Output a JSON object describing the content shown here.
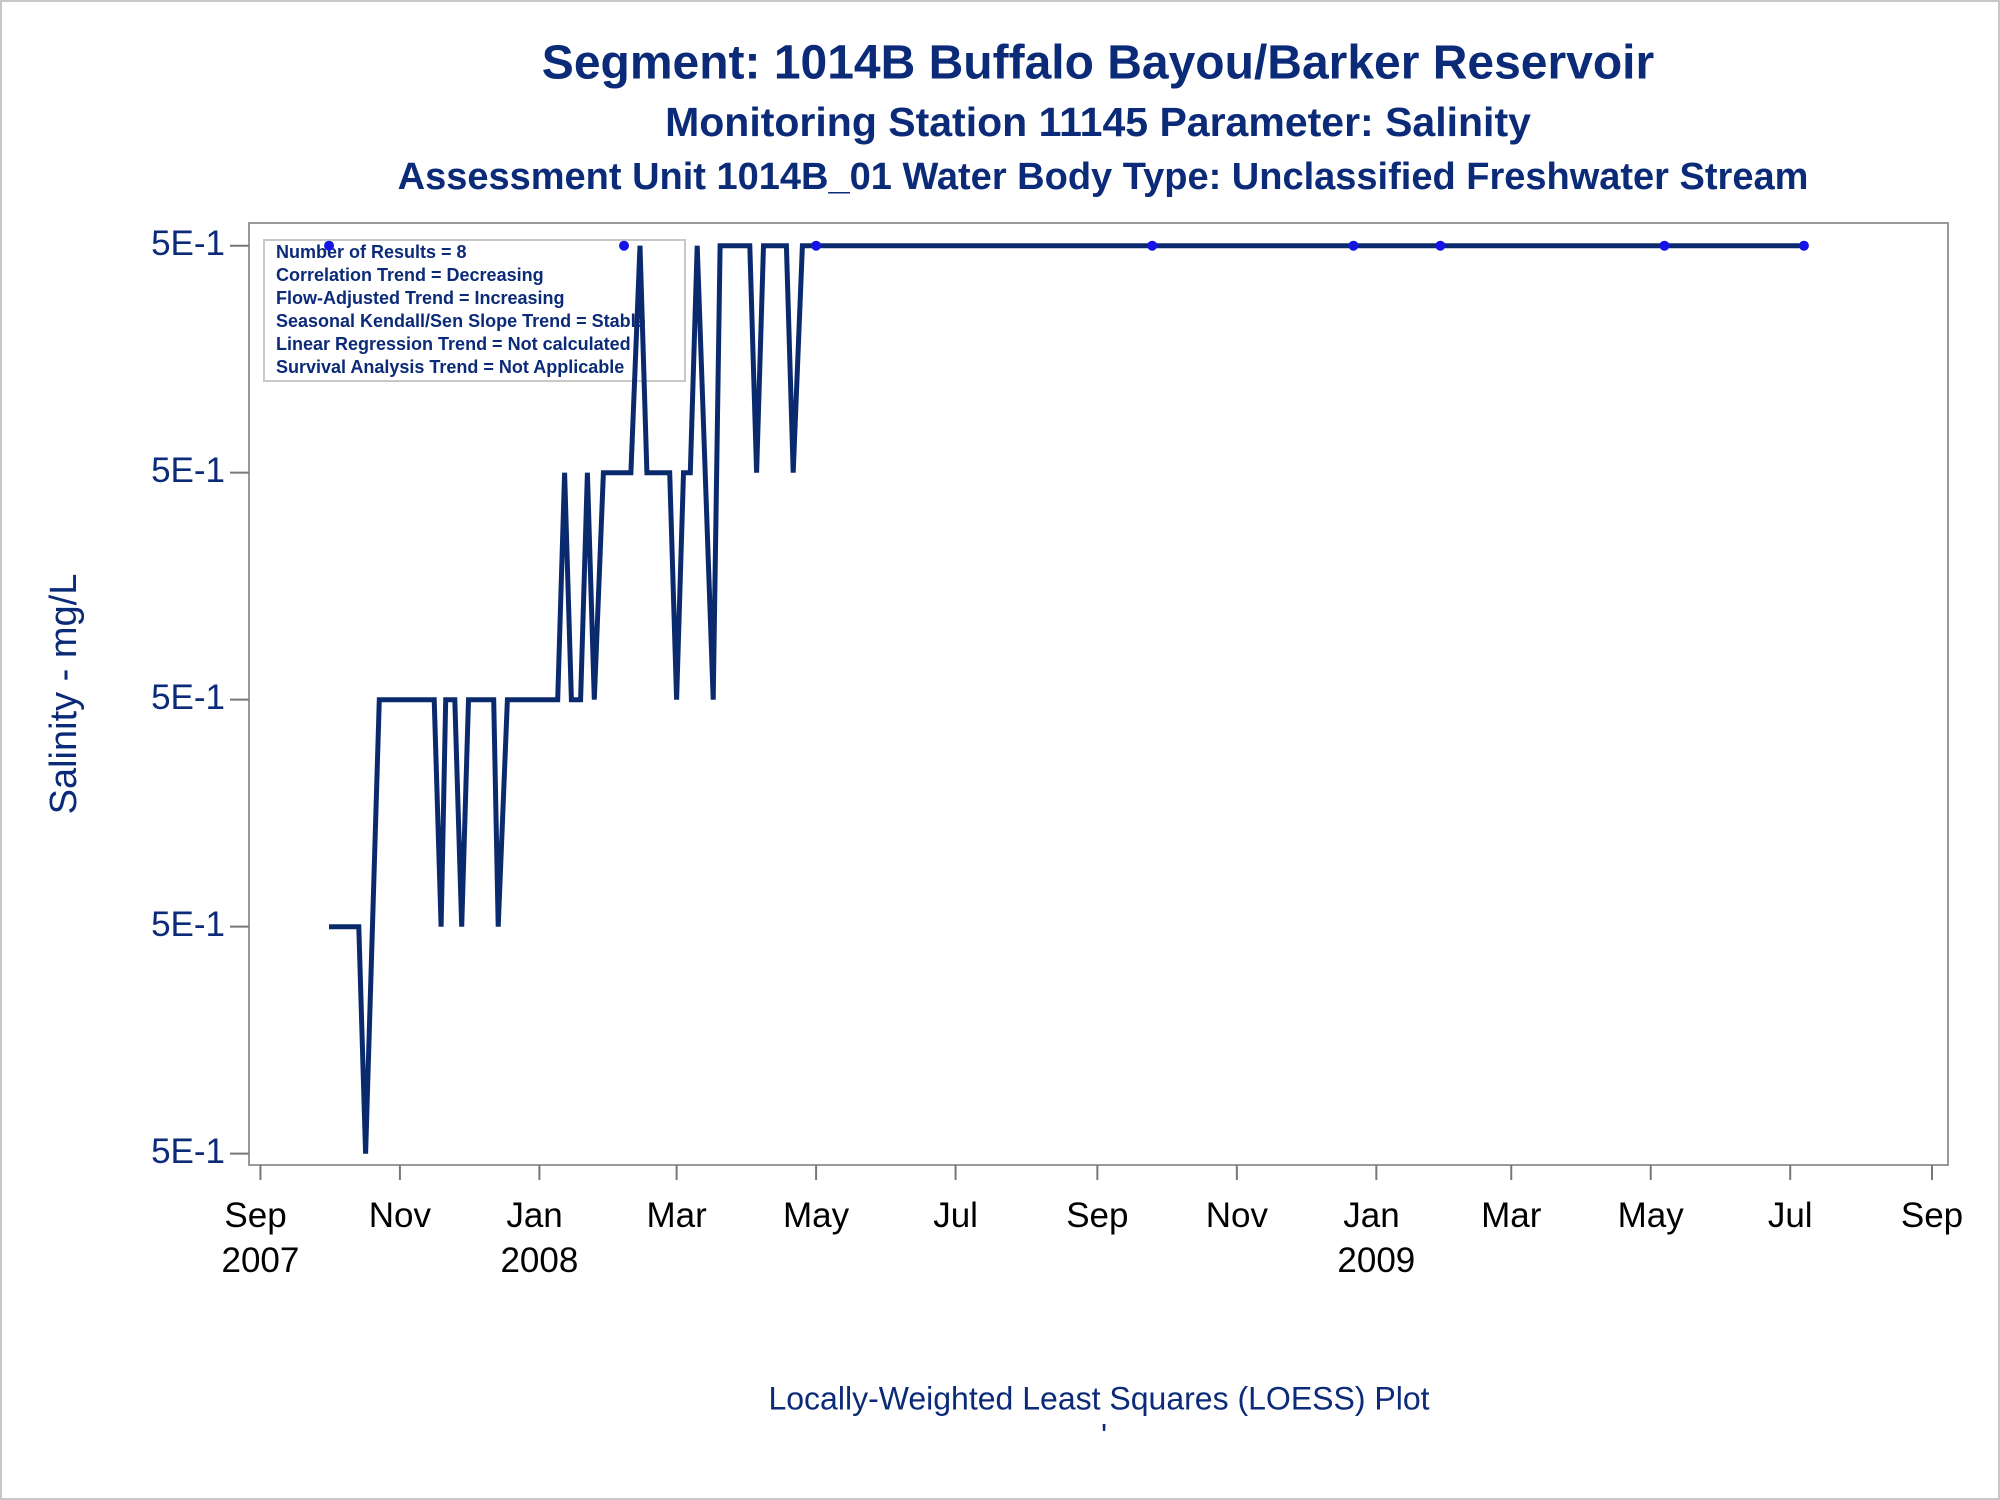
{
  "chart_data": {
    "type": "line",
    "title": "Segment: 1014B  Buffalo Bayou/Barker Reservoir",
    "subtitle": "Monitoring Station 11145 Parameter: Salinity",
    "subtitle2": "Assessment Unit 1014B_01   Water Body Type: Unclassified Freshwater Stream",
    "ylabel": "Salinity - mg/L",
    "footnote": "Locally-Weighted Least Squares (LOESS) Plot",
    "footnote2": "'",
    "stats": [
      "Number of Results = 8",
      "Correlation Trend = Decreasing",
      "Flow-Adjusted Trend = Increasing",
      "Seasonal Kendall/Sen Slope Trend = Stable",
      "Linear Regression Trend = Not calculated",
      "Survival Analysis Trend = Not Applicable"
    ],
    "color": "#0b2a6e",
    "point_color": "#1414e6",
    "x": [
      "2007-10-01",
      "2007-10-14",
      "2007-10-17",
      "2007-10-23",
      "2007-11-16",
      "2007-11-19",
      "2007-11-21",
      "2007-11-25",
      "2007-11-28",
      "2007-12-01",
      "2007-12-12",
      "2007-12-14",
      "2007-12-18",
      "2008-01-09",
      "2008-01-12",
      "2008-01-15",
      "2008-01-19",
      "2008-01-22",
      "2008-01-25",
      "2008-01-29",
      "2008-02-10",
      "2008-02-14",
      "2008-02-17",
      "2008-02-27",
      "2008-03-01",
      "2008-03-04",
      "2008-03-07",
      "2008-03-10",
      "2008-03-17",
      "2008-03-20",
      "2008-04-02",
      "2008-04-05",
      "2008-04-08",
      "2008-04-18",
      "2008-04-21",
      "2008-04-25",
      "2009-07-07"
    ],
    "values": [
      0.498,
      0.498,
      0.496,
      0.5,
      0.5,
      0.498,
      0.5,
      0.5,
      0.498,
      0.5,
      0.5,
      0.498,
      0.5,
      0.5,
      0.502,
      0.5,
      0.5,
      0.502,
      0.5,
      0.502,
      0.502,
      0.504,
      0.502,
      0.502,
      0.5,
      0.502,
      0.502,
      0.504,
      0.5,
      0.504,
      0.504,
      0.502,
      0.504,
      0.504,
      0.502,
      0.504,
      0.504
    ],
    "points": {
      "x": [
        "2007-10-01",
        "2008-02-07",
        "2008-05-01",
        "2008-09-25",
        "2008-12-22",
        "2009-01-29",
        "2009-05-07",
        "2009-07-07"
      ],
      "values": [
        0.504,
        0.504,
        0.504,
        0.504,
        0.504,
        0.504,
        0.504,
        0.504
      ]
    },
    "xlim": [
      "2007-08-27",
      "2009-09-08"
    ],
    "xticks": [
      {
        "value": "2007-09-01",
        "label": "Sep 2007"
      },
      {
        "value": "2007-11-01",
        "label": "Nov"
      },
      {
        "value": "2008-01-01",
        "label": "Jan 2008"
      },
      {
        "value": "2008-03-01",
        "label": "Mar"
      },
      {
        "value": "2008-05-01",
        "label": "May"
      },
      {
        "value": "2008-07-01",
        "label": "Jul"
      },
      {
        "value": "2008-09-01",
        "label": "Sep"
      },
      {
        "value": "2008-11-01",
        "label": "Nov"
      },
      {
        "value": "2009-01-01",
        "label": "Jan 2009"
      },
      {
        "value": "2009-03-01",
        "label": "Mar"
      },
      {
        "value": "2009-05-01",
        "label": "May"
      },
      {
        "value": "2009-07-01",
        "label": "Jul"
      },
      {
        "value": "2009-09-01",
        "label": "Sep"
      }
    ],
    "ylim": [
      0.4959,
      0.5042
    ],
    "yticks": [
      {
        "value": 0.496,
        "label": "5E-1"
      },
      {
        "value": 0.498,
        "label": "5E-1"
      },
      {
        "value": 0.5,
        "label": "5E-1"
      },
      {
        "value": 0.502,
        "label": "5E-1"
      },
      {
        "value": 0.504,
        "label": "5E-1"
      }
    ]
  }
}
